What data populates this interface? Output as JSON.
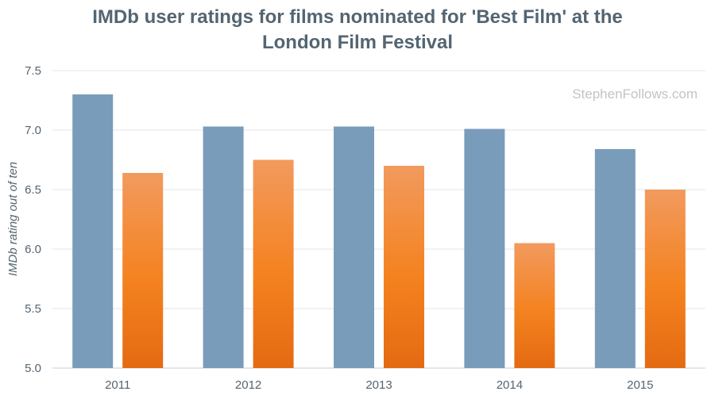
{
  "chart_data": {
    "type": "bar",
    "title_lines": [
      "IMDb user ratings for films nominated for 'Best Film' at the",
      "London Film Festival"
    ],
    "xlabel": "",
    "ylabel": "IMDb rating out of ten",
    "watermark": "StephenFollows.com",
    "categories": [
      "2011",
      "2012",
      "2013",
      "2014",
      "2015"
    ],
    "ylim": [
      5.0,
      7.5
    ],
    "yticks": [
      "5.0",
      "5.5",
      "6.0",
      "6.5",
      "7.0",
      "7.5"
    ],
    "grid": true,
    "series": [
      {
        "values": [
          7.3,
          7.03,
          7.03,
          7.01,
          6.84
        ],
        "color": "#7a9cbb"
      },
      {
        "values": [
          6.64,
          6.75,
          6.7,
          6.05,
          6.5
        ],
        "color_top": "#f29a5e",
        "color_mid": "#f4821f",
        "color_bottom": "#e46a12"
      }
    ]
  }
}
